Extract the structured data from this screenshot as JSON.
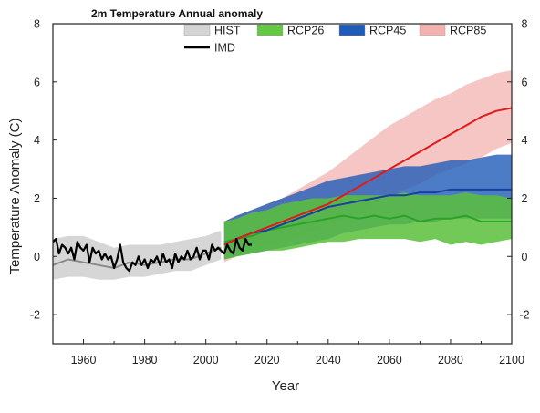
{
  "chart_data": {
    "type": "line",
    "title": "2m Temperature Annual anomaly",
    "xlabel": "Year",
    "ylabel": "Temperature Anomaly (C)",
    "xlim": [
      1950,
      2100
    ],
    "ylim": [
      -3,
      8
    ],
    "x_ticks": [
      1960,
      1980,
      2000,
      2020,
      2040,
      2060,
      2080,
      2100
    ],
    "y_ticks": [
      -2,
      0,
      2,
      4,
      6,
      8
    ],
    "right_axis_ticks": [
      -2,
      0,
      2,
      4,
      6,
      8
    ],
    "legend_placement": "top-right",
    "grid": false,
    "series": [
      {
        "name": "HIST",
        "kind": "band",
        "color": "#cfcfcf",
        "line_color": "#8a8a8a",
        "x": [
          1950,
          1955,
          1960,
          1965,
          1970,
          1975,
          1980,
          1985,
          1990,
          1995,
          2000,
          2005
        ],
        "mean": [
          -0.3,
          -0.1,
          -0.2,
          -0.3,
          -0.4,
          -0.2,
          -0.3,
          -0.2,
          -0.1,
          -0.1,
          0.1,
          0.3
        ],
        "lower": [
          -0.8,
          -0.7,
          -0.7,
          -0.8,
          -0.8,
          -0.7,
          -0.7,
          -0.6,
          -0.5,
          -0.5,
          -0.3,
          -0.1
        ],
        "upper": [
          0.6,
          0.7,
          0.7,
          0.5,
          0.3,
          0.4,
          0.4,
          0.4,
          0.5,
          0.6,
          0.7,
          0.9
        ]
      },
      {
        "name": "RCP26",
        "kind": "band",
        "color": "#5bbf3a",
        "line_color": "#2aa32a",
        "x": [
          2006,
          2010,
          2015,
          2020,
          2025,
          2030,
          2035,
          2040,
          2045,
          2050,
          2055,
          2060,
          2065,
          2070,
          2075,
          2080,
          2085,
          2090,
          2095,
          2100
        ],
        "mean": [
          0.5,
          0.6,
          0.7,
          0.9,
          1.0,
          1.1,
          1.2,
          1.3,
          1.4,
          1.3,
          1.4,
          1.3,
          1.4,
          1.2,
          1.3,
          1.3,
          1.4,
          1.2,
          1.2,
          1.2
        ],
        "lower": [
          -0.1,
          0.0,
          0.1,
          0.2,
          0.2,
          0.3,
          0.4,
          0.5,
          0.5,
          0.6,
          0.6,
          0.6,
          0.6,
          0.5,
          0.6,
          0.4,
          0.5,
          0.4,
          0.5,
          0.6
        ],
        "upper": [
          1.2,
          1.3,
          1.5,
          1.6,
          1.8,
          1.9,
          2.0,
          2.0,
          2.1,
          2.1,
          2.1,
          2.1,
          2.2,
          2.1,
          2.1,
          2.1,
          2.2,
          2.1,
          2.1,
          2.0
        ]
      },
      {
        "name": "RCP45",
        "kind": "band",
        "color": "#1f5bb8",
        "line_color": "#1a3fa0",
        "x": [
          2006,
          2010,
          2015,
          2020,
          2025,
          2030,
          2035,
          2040,
          2045,
          2050,
          2055,
          2060,
          2065,
          2070,
          2075,
          2080,
          2085,
          2090,
          2095,
          2100
        ],
        "mean": [
          0.4,
          0.6,
          0.8,
          0.9,
          1.1,
          1.3,
          1.5,
          1.7,
          1.8,
          1.9,
          2.0,
          2.1,
          2.1,
          2.2,
          2.2,
          2.3,
          2.3,
          2.3,
          2.3,
          2.3
        ],
        "lower": [
          -0.1,
          0.0,
          0.1,
          0.2,
          0.3,
          0.4,
          0.5,
          0.6,
          0.8,
          0.9,
          1.0,
          1.1,
          1.1,
          1.2,
          1.2,
          1.3,
          1.3,
          1.3,
          1.3,
          1.3
        ],
        "upper": [
          1.2,
          1.4,
          1.6,
          1.8,
          2.0,
          2.2,
          2.4,
          2.6,
          2.7,
          2.8,
          2.9,
          3.0,
          3.1,
          3.1,
          3.2,
          3.3,
          3.3,
          3.4,
          3.5,
          3.5
        ]
      },
      {
        "name": "RCP85",
        "kind": "band",
        "color": "#f2b3b0",
        "line_color": "#e01b1b",
        "x": [
          2006,
          2010,
          2015,
          2020,
          2025,
          2030,
          2035,
          2040,
          2045,
          2050,
          2055,
          2060,
          2065,
          2070,
          2075,
          2080,
          2085,
          2090,
          2095,
          2100
        ],
        "mean": [
          0.4,
          0.6,
          0.8,
          1.0,
          1.2,
          1.4,
          1.6,
          1.8,
          2.1,
          2.4,
          2.7,
          3.0,
          3.3,
          3.6,
          3.9,
          4.2,
          4.5,
          4.8,
          5.0,
          5.1
        ],
        "lower": [
          -0.2,
          0.0,
          0.2,
          0.4,
          0.5,
          0.7,
          0.9,
          1.1,
          1.3,
          1.5,
          1.8,
          2.0,
          2.3,
          2.5,
          2.8,
          3.0,
          3.2,
          3.4,
          3.7,
          3.9
        ],
        "upper": [
          1.2,
          1.4,
          1.6,
          1.8,
          2.0,
          2.3,
          2.6,
          2.9,
          3.3,
          3.7,
          4.1,
          4.5,
          4.8,
          5.1,
          5.4,
          5.6,
          5.9,
          6.1,
          6.3,
          6.4
        ]
      },
      {
        "name": "IMD",
        "kind": "line",
        "color": "#000000",
        "x": [
          1950,
          1951,
          1952,
          1953,
          1954,
          1955,
          1956,
          1957,
          1958,
          1959,
          1960,
          1961,
          1962,
          1963,
          1964,
          1965,
          1966,
          1967,
          1968,
          1969,
          1970,
          1971,
          1972,
          1973,
          1974,
          1975,
          1976,
          1977,
          1978,
          1979,
          1980,
          1981,
          1982,
          1983,
          1984,
          1985,
          1986,
          1987,
          1988,
          1989,
          1990,
          1991,
          1992,
          1993,
          1994,
          1995,
          1996,
          1997,
          1998,
          1999,
          2000,
          2001,
          2002,
          2003,
          2004,
          2005,
          2006,
          2007,
          2008,
          2009,
          2010,
          2011,
          2012,
          2013,
          2014,
          2015
        ],
        "y": [
          0.5,
          0.6,
          0.1,
          0.4,
          0.3,
          0.1,
          0.3,
          -0.1,
          0.5,
          0.3,
          0.2,
          0.4,
          -0.2,
          0.3,
          0.1,
          0.2,
          -0.1,
          0.1,
          -0.1,
          0.0,
          -0.4,
          -0.1,
          0.4,
          -0.2,
          -0.4,
          -0.5,
          -0.2,
          -0.3,
          0.0,
          -0.3,
          -0.1,
          -0.4,
          -0.1,
          -0.2,
          0.0,
          -0.3,
          0.1,
          -0.2,
          -0.1,
          -0.4,
          0.1,
          -0.2,
          0.0,
          -0.1,
          0.2,
          -0.1,
          0.0,
          0.3,
          -0.1,
          0.2,
          0.2,
          -0.1,
          0.4,
          0.2,
          0.3,
          0.2,
          0.1,
          0.4,
          0.2,
          0.1,
          0.6,
          0.3,
          0.2,
          0.6,
          0.4,
          0.4
        ]
      }
    ]
  },
  "legend": [
    {
      "label": "HIST",
      "kind": "swatch",
      "color": "#d4d4d4"
    },
    {
      "label": "RCP26",
      "kind": "swatch",
      "color": "#66c744"
    },
    {
      "label": "RCP45",
      "kind": "swatch",
      "color": "#1f5bb8"
    },
    {
      "label": "RCP85",
      "kind": "swatch",
      "color": "#f2b3b0"
    },
    {
      "label": "IMD",
      "kind": "line",
      "color": "#000000"
    }
  ]
}
